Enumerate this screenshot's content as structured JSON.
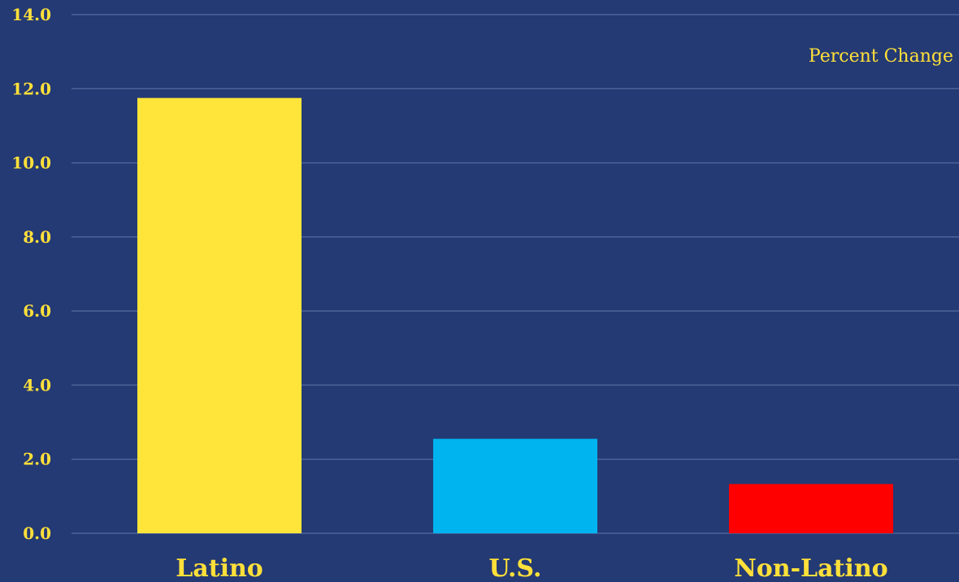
{
  "chart_data": {
    "type": "bar",
    "title": "",
    "xlabel": "",
    "ylabel": "",
    "annotation": "Percent Change",
    "categories": [
      "Latino",
      "U.S.",
      "Non-Latino"
    ],
    "values": [
      11.75,
      2.55,
      1.33
    ],
    "colors": [
      "#ffe53a",
      "#00b4f0",
      "#ff0000"
    ],
    "ylim": [
      0,
      14
    ],
    "yticks": [
      "0.0",
      "2.0",
      "4.0",
      "6.0",
      "8.0",
      "10.0",
      "12.0",
      "14.0"
    ],
    "grid": true,
    "background": "#243a74",
    "text_color": "#ffe03a"
  }
}
